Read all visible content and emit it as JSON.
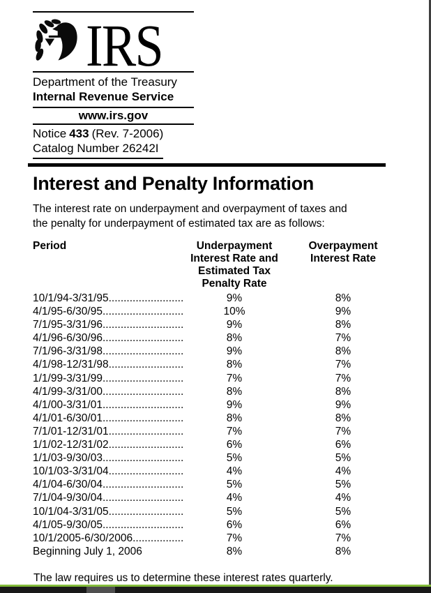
{
  "letterhead": {
    "logo_text": "IRS",
    "department": "Department of the Treasury",
    "service": "Internal Revenue Service",
    "website": "www.irs.gov",
    "notice_label": "Notice",
    "notice_number": "433",
    "notice_revision": "(Rev. 7-2006)",
    "catalog": "Catalog Number 26242I"
  },
  "title": "Interest and Penalty Information",
  "intro": {
    "line1": "The interest rate on underpayment and overpayment of taxes and",
    "line2": "the penalty for underpayment of estimated tax are as follows:"
  },
  "table": {
    "headers": {
      "period": "Period",
      "underpayment": [
        "Underpayment",
        "Interest Rate and",
        "Estimated Tax",
        "Penalty Rate"
      ],
      "overpayment": [
        "Overpayment",
        "Interest Rate"
      ]
    },
    "leader_dots": "............................................................",
    "rows": [
      {
        "period": "10/1/94-3/31/95",
        "leader": true,
        "underpayment": "9%",
        "overpayment": "8%"
      },
      {
        "period": "4/1/95-6/30/95",
        "leader": true,
        "underpayment": "10%",
        "overpayment": "9%"
      },
      {
        "period": "7/1/95-3/31/96",
        "leader": true,
        "underpayment": "9%",
        "overpayment": "8%"
      },
      {
        "period": "4/1/96-6/30/96",
        "leader": true,
        "underpayment": "8%",
        "overpayment": "7%"
      },
      {
        "period": "7/1/96-3/31/98",
        "leader": true,
        "underpayment": "9%",
        "overpayment": "8%"
      },
      {
        "period": "4/1/98-12/31/98",
        "leader": true,
        "underpayment": "8%",
        "overpayment": "7%"
      },
      {
        "period": "1/1/99-3/31/99",
        "leader": true,
        "underpayment": "7%",
        "overpayment": "7%"
      },
      {
        "period": "4/1/99-3/31/00",
        "leader": true,
        "underpayment": "8%",
        "overpayment": "8%"
      },
      {
        "period": "4/1/00-3/31/01",
        "leader": true,
        "underpayment": "9%",
        "overpayment": "9%"
      },
      {
        "period": "4/1/01-6/30/01",
        "leader": true,
        "underpayment": "8%",
        "overpayment": "8%"
      },
      {
        "period": "7/1/01-12/31/01",
        "leader": true,
        "underpayment": "7%",
        "overpayment": "7%"
      },
      {
        "period": "1/1/02-12/31/02",
        "leader": true,
        "underpayment": "6%",
        "overpayment": "6%"
      },
      {
        "period": "1/1/03-9/30/03",
        "leader": true,
        "underpayment": "5%",
        "overpayment": "5%"
      },
      {
        "period": "10/1/03-3/31/04",
        "leader": true,
        "underpayment": "4%",
        "overpayment": "4%"
      },
      {
        "period": "4/1/04-6/30/04",
        "leader": true,
        "underpayment": "5%",
        "overpayment": "5%"
      },
      {
        "period": "7/1/04-9/30/04",
        "leader": true,
        "underpayment": "4%",
        "overpayment": "4%"
      },
      {
        "period": "10/1/04-3/31/05",
        "leader": true,
        "underpayment": "5%",
        "overpayment": "5%"
      },
      {
        "period": "4/1/05-9/30/05",
        "leader": true,
        "underpayment": "6%",
        "overpayment": "6%"
      },
      {
        "period": "10/1/2005-6/30/2006",
        "leader": true,
        "underpayment": "7%",
        "overpayment": "7%"
      },
      {
        "period": "Beginning July 1, 2006",
        "leader": false,
        "underpayment": "8%",
        "overpayment": "8%"
      }
    ]
  },
  "footer": "The law requires us to determine these interest rates quarterly.",
  "colors": {
    "text": "#000000",
    "rule": "#000000",
    "bottom_accent_green": "#82bb3a",
    "bottom_bar": "#181818",
    "scrollbar_thumb": "#4f4f4f",
    "right_border": "#3f3f3f"
  }
}
